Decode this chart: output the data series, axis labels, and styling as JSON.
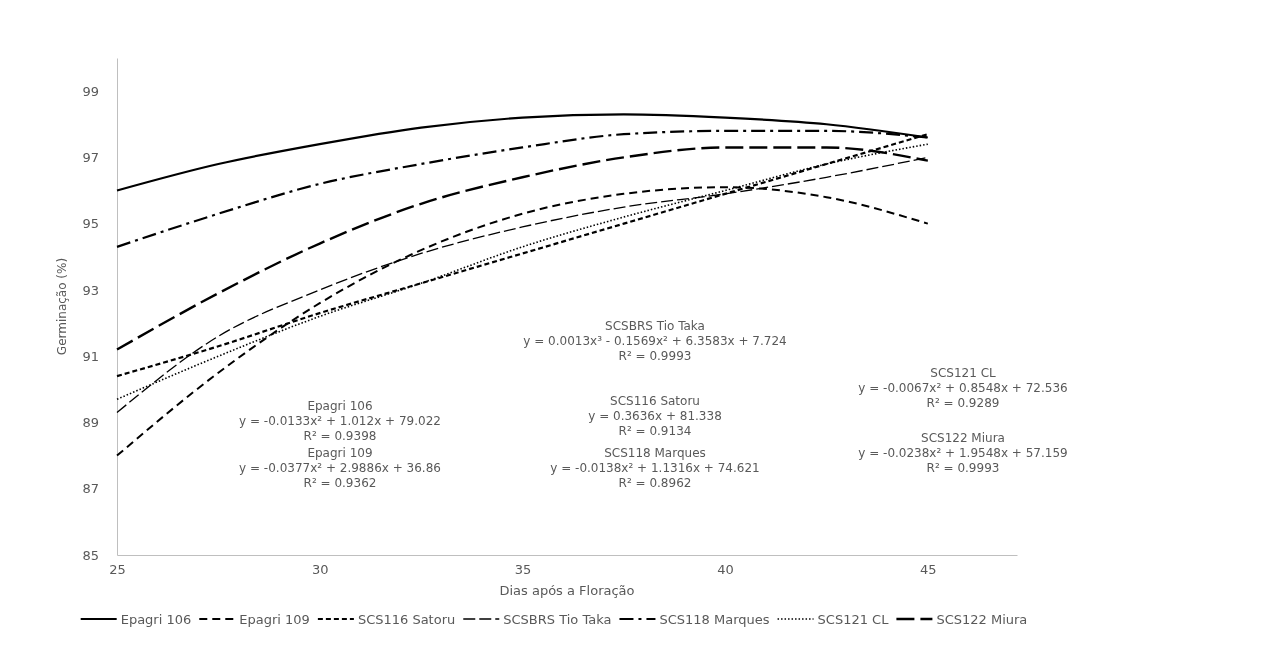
{
  "chart_data": {
    "type": "line",
    "xlabel": "Dias após a Floração",
    "ylabel": "Germinação (%)",
    "x": [
      25,
      27.5,
      30,
      32.5,
      35,
      37.5,
      40,
      42.5,
      45
    ],
    "series": [
      {
        "name": "Epagri 106",
        "color": "#000000",
        "line_style": "solid",
        "values": [
          96.0,
          96.8,
          97.4,
          97.9,
          98.2,
          98.3,
          98.2,
          98.0,
          97.6
        ]
      },
      {
        "name": "Epagri 109",
        "color": "#000000",
        "line_style": "dashed",
        "values": [
          88.0,
          90.5,
          92.6,
          94.2,
          95.3,
          95.9,
          96.1,
          95.8,
          95.0
        ]
      },
      {
        "name": "SCS116 Satoru",
        "color": "#000000",
        "line_style": "dashed",
        "values": [
          90.4,
          91.3,
          92.3,
          93.2,
          94.1,
          95.0,
          95.9,
          96.8,
          97.7
        ]
      },
      {
        "name": "SCSBRS Tio Taka",
        "color": "#000000",
        "line_style": "dashed",
        "values": [
          89.3,
          91.6,
          93.0,
          94.1,
          94.9,
          95.5,
          95.9,
          96.4,
          97.0
        ]
      },
      {
        "name": "SCS118 Marques",
        "color": "#000000",
        "line_style": "dashed",
        "values": [
          94.3,
          95.3,
          96.2,
          96.8,
          97.3,
          97.7,
          97.8,
          97.8,
          97.6
        ]
      },
      {
        "name": "SCS121 CL",
        "color": "#000000",
        "line_style": "dotted",
        "values": [
          89.7,
          91.0,
          92.2,
          93.2,
          94.3,
          95.2,
          96.0,
          96.8,
          97.4
        ]
      },
      {
        "name": "SCS122 Miura",
        "color": "#000000",
        "line_style": "dashed",
        "values": [
          91.2,
          92.9,
          94.4,
          95.6,
          96.4,
          97.0,
          97.3,
          97.3,
          96.9
        ]
      }
    ],
    "xlim": [
      25,
      47.2
    ],
    "xticks": [
      25,
      30,
      35,
      40,
      45
    ],
    "ylim": [
      85,
      100
    ],
    "yticks": [
      85,
      87,
      89,
      91,
      93,
      95,
      97,
      99
    ],
    "grid": false,
    "legend": "bottom",
    "marker": "none",
    "annotations": [
      "SCSBRS Tio Taka\ny = 0.0013x³ - 0.1569x² + 6.3583x + 7.724\nR² = 0.9993",
      "Epagri 106\ny = -0.0133x² + 1.012x + 79.022\nR² = 0.9398",
      "SCS116 Satoru\ny = 0.3636x + 81.338\nR² = 0.9134",
      "SCS121 CL\ny = -0.0067x² + 0.8548x + 72.536\nR² = 0.9289",
      "Epagri 109\ny = -0.0377x² + 2.9886x + 36.86\nR² = 0.9362",
      "SCS118 Marques\ny = -0.0138x² + 1.1316x + 74.621\nR² = 0.8962",
      "SCS122 Miura\ny = -0.0238x² + 1.9548x + 57.159\nR² = 0.9993"
    ]
  }
}
